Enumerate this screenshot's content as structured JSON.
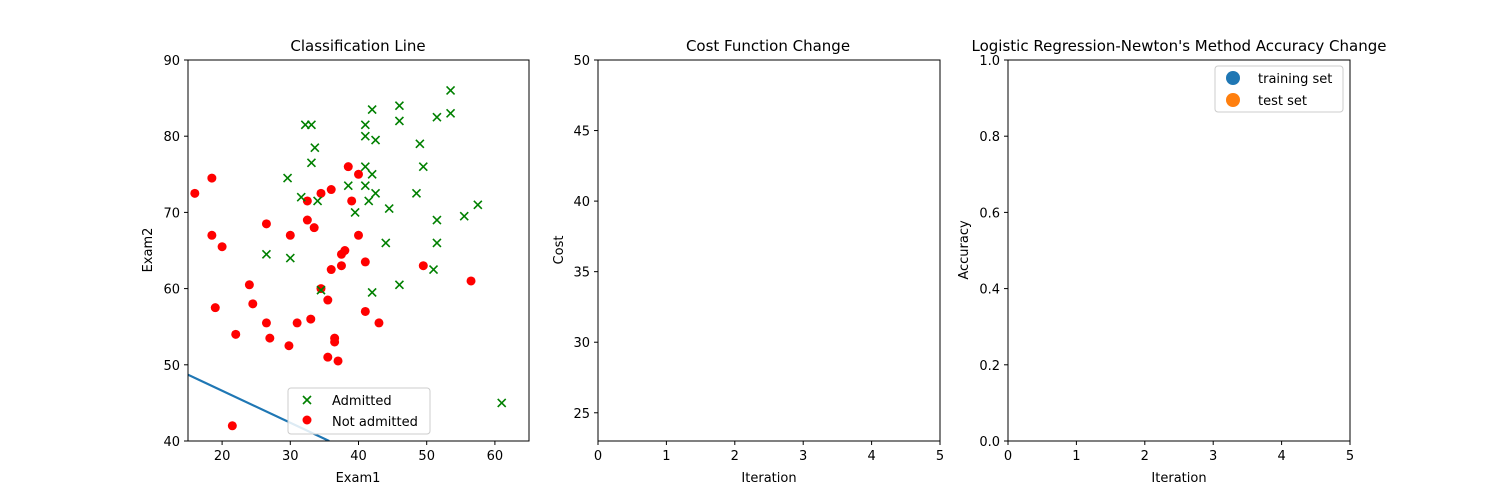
{
  "chart_data": [
    {
      "type": "scatter",
      "title": "Classification Line",
      "xlabel": "Exam1",
      "ylabel": "Exam2",
      "xlim": [
        15,
        65
      ],
      "ylim": [
        40,
        90
      ],
      "xticks": [
        20,
        30,
        40,
        50,
        60
      ],
      "yticks": [
        40,
        50,
        60,
        70,
        80,
        90
      ],
      "legend_position": "lower-center",
      "series": [
        {
          "name": "Admitted",
          "marker": "x",
          "color": "#008000",
          "points": [
            [
              32.2,
              81.5
            ],
            [
              33.1,
              81.5
            ],
            [
              33.1,
              76.5
            ],
            [
              33.6,
              78.5
            ],
            [
              29.6,
              74.5
            ],
            [
              31.6,
              72.0
            ],
            [
              34.0,
              71.5
            ],
            [
              34.5,
              59.8
            ],
            [
              26.5,
              64.5
            ],
            [
              30.0,
              64.0
            ],
            [
              38.5,
              73.5
            ],
            [
              39.5,
              70.0
            ],
            [
              41.0,
              80.0
            ],
            [
              41.0,
              81.5
            ],
            [
              42.0,
              83.5
            ],
            [
              42.5,
              79.5
            ],
            [
              41.0,
              76.0
            ],
            [
              42.0,
              75.0
            ],
            [
              41.0,
              73.5
            ],
            [
              42.5,
              72.5
            ],
            [
              41.5,
              71.5
            ],
            [
              44.5,
              70.5
            ],
            [
              44.0,
              66.0
            ],
            [
              42.0,
              59.5
            ],
            [
              46.0,
              60.5
            ],
            [
              46.0,
              84.0
            ],
            [
              46.0,
              82.0
            ],
            [
              49.0,
              79.0
            ],
            [
              49.5,
              76.0
            ],
            [
              48.5,
              72.5
            ],
            [
              51.5,
              82.5
            ],
            [
              53.5,
              83.0
            ],
            [
              53.5,
              86.0
            ],
            [
              51.5,
              69.0
            ],
            [
              55.5,
              69.5
            ],
            [
              57.5,
              71.0
            ],
            [
              51.5,
              66.0
            ],
            [
              51.0,
              62.5
            ],
            [
              61.0,
              45.0
            ]
          ]
        },
        {
          "name": "Not admitted",
          "marker": "o",
          "color": "#ff0000",
          "points": [
            [
              16.0,
              72.5
            ],
            [
              18.5,
              74.5
            ],
            [
              18.5,
              67.0
            ],
            [
              20.0,
              65.5
            ],
            [
              19.0,
              57.5
            ],
            [
              22.0,
              54.0
            ],
            [
              24.0,
              60.5
            ],
            [
              24.5,
              58.0
            ],
            [
              26.5,
              55.5
            ],
            [
              27.0,
              53.5
            ],
            [
              26.5,
              68.5
            ],
            [
              30.0,
              67.0
            ],
            [
              29.8,
              52.5
            ],
            [
              31.0,
              55.5
            ],
            [
              33.0,
              56.0
            ],
            [
              32.5,
              71.5
            ],
            [
              32.5,
              69.0
            ],
            [
              33.5,
              68.0
            ],
            [
              34.5,
              72.5
            ],
            [
              36.0,
              73.0
            ],
            [
              34.5,
              60.0
            ],
            [
              35.5,
              58.5
            ],
            [
              36.0,
              62.5
            ],
            [
              37.5,
              63.0
            ],
            [
              37.5,
              64.5
            ],
            [
              38.0,
              65.0
            ],
            [
              35.5,
              51.0
            ],
            [
              36.5,
              53.5
            ],
            [
              36.5,
              53.0
            ],
            [
              37.0,
              50.5
            ],
            [
              38.5,
              76.0
            ],
            [
              40.0,
              75.0
            ],
            [
              39.0,
              71.5
            ],
            [
              40.0,
              67.0
            ],
            [
              41.0,
              63.5
            ],
            [
              41.0,
              57.0
            ],
            [
              43.0,
              55.5
            ],
            [
              49.5,
              63.0
            ],
            [
              56.5,
              61.0
            ],
            [
              21.5,
              42.0
            ]
          ]
        }
      ],
      "line": {
        "color": "#1f77b4",
        "points": [
          [
            15,
            48.7
          ],
          [
            35.7,
            40.0
          ]
        ]
      }
    },
    {
      "type": "line",
      "title": "Cost Function Change",
      "xlabel": "Iteration",
      "ylabel": "Cost",
      "xlim": [
        0,
        5
      ],
      "ylim": [
        23,
        50
      ],
      "xticks": [
        0,
        1,
        2,
        3,
        4,
        5
      ],
      "yticks": [
        25,
        30,
        35,
        40,
        45,
        50
      ],
      "series": []
    },
    {
      "type": "line",
      "title": "Logistic Regression-Newton's Method Accuracy Change",
      "xlabel": "Iteration",
      "ylabel": "Accuracy",
      "xlim": [
        0,
        5
      ],
      "ylim": [
        0,
        1
      ],
      "xticks": [
        0,
        1,
        2,
        3,
        4,
        5
      ],
      "yticks": [
        0.0,
        0.2,
        0.4,
        0.6,
        0.8,
        1.0
      ],
      "legend_position": "upper-right",
      "series": [
        {
          "name": "training set",
          "marker": "o",
          "color": "#1f77b4",
          "points": []
        },
        {
          "name": "test set",
          "marker": "o",
          "color": "#ff7f0e",
          "points": []
        }
      ]
    }
  ]
}
